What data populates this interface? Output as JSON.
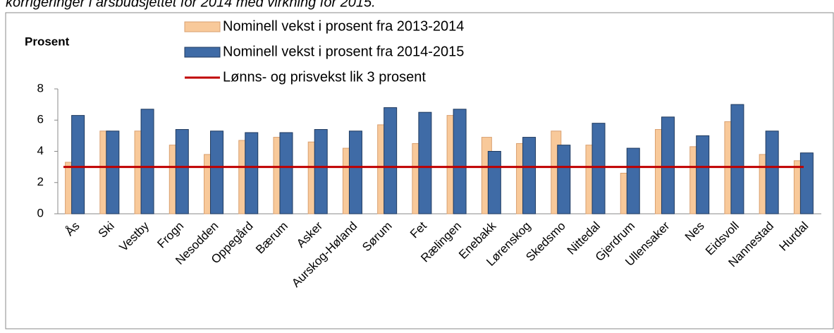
{
  "chart_data": {
    "type": "bar",
    "title": "korrigeringer i årsbudsjettet for 2014 med virkning for 2015.",
    "y_label": "Prosent",
    "categories": [
      "Ås",
      "Ski",
      "Vestby",
      "Frogn",
      "Nesodden",
      "Oppegård",
      "Bærum",
      "Asker",
      "Aurskog-Høland",
      "Sørum",
      "Fet",
      "Rælingen",
      "Enebakk",
      "Lørenskog",
      "Skedsmo",
      "Nittedal",
      "Gjerdrum",
      "Ullensaker",
      "Nes",
      "Eidsvoll",
      "Nannestad",
      "Hurdal"
    ],
    "series": [
      {
        "name": "Nominell vekst i prosent fra 2013-2014",
        "color": "#f8c99a",
        "values": [
          3.3,
          5.3,
          5.3,
          4.4,
          3.8,
          4.7,
          4.9,
          4.6,
          4.2,
          5.7,
          4.5,
          6.3,
          4.9,
          4.5,
          5.3,
          4.4,
          2.6,
          5.4,
          4.3,
          5.9,
          3.8,
          3.4
        ]
      },
      {
        "name": "Nominell vekst i prosent fra 2014-2015",
        "color": "#3f6ba6",
        "values": [
          6.3,
          5.3,
          6.7,
          5.4,
          5.3,
          5.2,
          5.2,
          5.4,
          5.3,
          6.8,
          6.5,
          6.7,
          4.0,
          4.9,
          4.4,
          5.8,
          4.2,
          6.2,
          5.0,
          7.0,
          5.3,
          3.9
        ]
      }
    ],
    "reference_line": {
      "name": "Lønns- og prisvekst lik 3 prosent",
      "value": 3,
      "color": "#c00000"
    },
    "ylim": [
      0,
      8
    ],
    "yticks": [
      0,
      2,
      4,
      6,
      8
    ]
  }
}
